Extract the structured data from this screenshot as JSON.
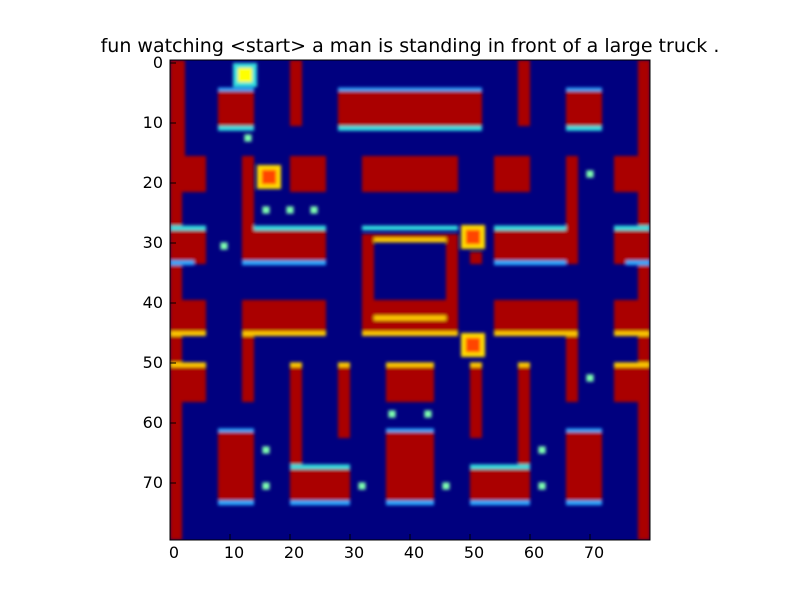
{
  "figure": {
    "title": "fun watching <start> a man is standing in front of a large truck ."
  },
  "axes": {
    "x_ticks": [
      "0",
      "10",
      "20",
      "30",
      "40",
      "50",
      "60",
      "70"
    ],
    "y_ticks": [
      "0",
      "10",
      "20",
      "30",
      "40",
      "50",
      "60",
      "70"
    ],
    "x_range": [
      0,
      80
    ],
    "y_range": [
      0,
      80
    ]
  },
  "colors": {
    "background": "#00007f",
    "wall": "#aa0000",
    "edge_high": "#ffcc00",
    "edge_low": "#2aa9ff",
    "pellet": "#7fffb0",
    "cyan": "#33e0e0"
  },
  "sprites": [
    {
      "name": "player",
      "x": 12.5,
      "y": 2.5
    },
    {
      "name": "ghost-1",
      "x": 16.5,
      "y": 19.5
    },
    {
      "name": "ghost-2",
      "x": 50.5,
      "y": 29.5
    },
    {
      "name": "ghost-3",
      "x": 50.5,
      "y": 47.5
    }
  ]
}
